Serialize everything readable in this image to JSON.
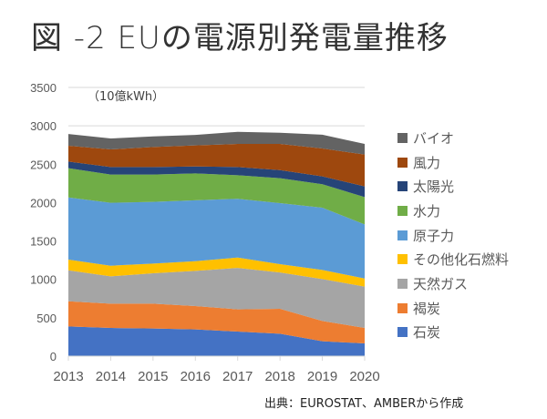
{
  "title": "図 -2 EUの電源別発電量推移",
  "source": "出典：EUROSTAT、AMBERから作成",
  "chart_data": {
    "type": "area",
    "stacked": true,
    "title": "図 -2 EUの電源別発電量推移",
    "unit_label": "（10億kWh）",
    "xlabel": "",
    "ylabel": "（10億kWh）",
    "ylim": [
      0,
      3500
    ],
    "yticks": [
      0,
      500,
      1000,
      1500,
      2000,
      2500,
      3000,
      3500
    ],
    "grid": true,
    "legend_position": "right",
    "x": [
      "2013",
      "2014",
      "2015",
      "2016",
      "2017",
      "2018",
      "2019",
      "2020"
    ],
    "series": [
      {
        "name": "石炭",
        "color": "#4472c4",
        "values": [
          387,
          368,
          360,
          348,
          320,
          292,
          194,
          166
        ]
      },
      {
        "name": "褐炭",
        "color": "#ed7d31",
        "values": [
          328,
          316,
          324,
          304,
          290,
          325,
          265,
          202
        ]
      },
      {
        "name": "天然ガス",
        "color": "#a5a5a5",
        "values": [
          403,
          356,
          395,
          459,
          540,
          473,
          545,
          538
        ]
      },
      {
        "name": "その他化石燃料",
        "color": "#ffc000",
        "values": [
          139,
          138,
          127,
          126,
          135,
          108,
          119,
          106
        ]
      },
      {
        "name": "原子力",
        "color": "#5b9bd5",
        "values": [
          811,
          819,
          803,
          793,
          765,
          795,
          811,
          704
        ]
      },
      {
        "name": "水力",
        "color": "#70ad47",
        "values": [
          380,
          368,
          356,
          350,
          306,
          325,
          305,
          356
        ]
      },
      {
        "name": "太陽光",
        "color": "#264478",
        "values": [
          87,
          99,
          99,
          91,
          108,
          106,
          103,
          139
        ]
      },
      {
        "name": "風力",
        "color": "#9e480e",
        "values": [
          205,
          229,
          260,
          274,
          300,
          340,
          363,
          415
        ]
      },
      {
        "name": "バイオ",
        "color": "#636363",
        "values": [
          153,
          142,
          138,
          137,
          158,
          146,
          180,
          138
        ]
      }
    ]
  }
}
